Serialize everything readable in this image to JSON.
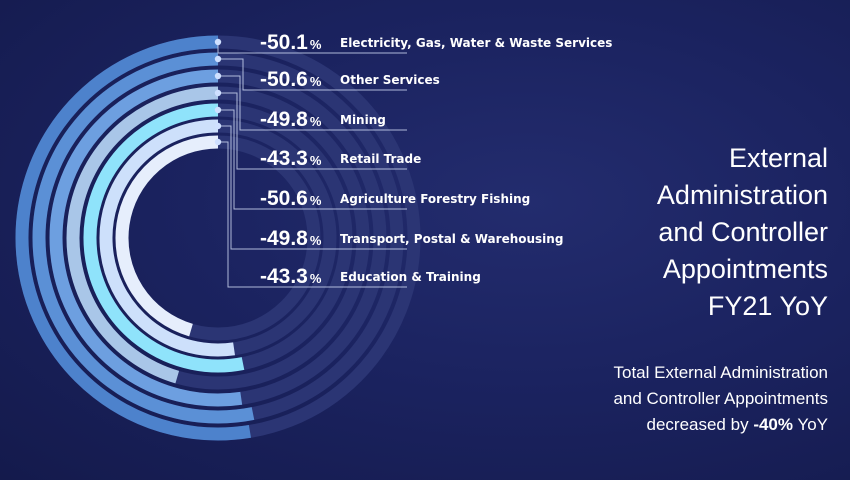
{
  "title_lines": [
    "External",
    "Administration",
    "and Controller",
    "Appointments",
    "FY21 YoY"
  ],
  "summary": {
    "line1": "Total External Administration",
    "line2": "and Controller Appointments",
    "line3_prefix": "decreased by",
    "line3_value": "-40%",
    "line3_suffix": "YoY"
  },
  "chart_data": {
    "type": "radial-bar",
    "title": "External Administration and Controller Appointments FY21 YoY",
    "unit": "%",
    "series": [
      {
        "name": "Electricity, Gas, Water & Waste Services",
        "value": -50.1,
        "display": "-50.1",
        "color": "#4d82cc"
      },
      {
        "name": "Other Services",
        "value": -50.6,
        "display": "-50.6",
        "color": "#5b90d6"
      },
      {
        "name": "Mining",
        "value": -49.8,
        "display": "-49.8",
        "color": "#6d9fe0"
      },
      {
        "name": "Retail Trade",
        "value": -43.3,
        "display": "-43.3",
        "color": "#a9c6e8"
      },
      {
        "name": "Agriculture Forestry Fishing",
        "value": -50.6,
        "display": "-50.6",
        "color": "#8fe3fb"
      },
      {
        "name": "Transport, Postal & Warehousing",
        "value": -49.8,
        "display": "-49.8",
        "color": "#cde0fb"
      },
      {
        "name": "Education & Training",
        "value": -43.3,
        "display": "-43.3",
        "color": "#e6eefc"
      }
    ],
    "total_change": -40
  }
}
